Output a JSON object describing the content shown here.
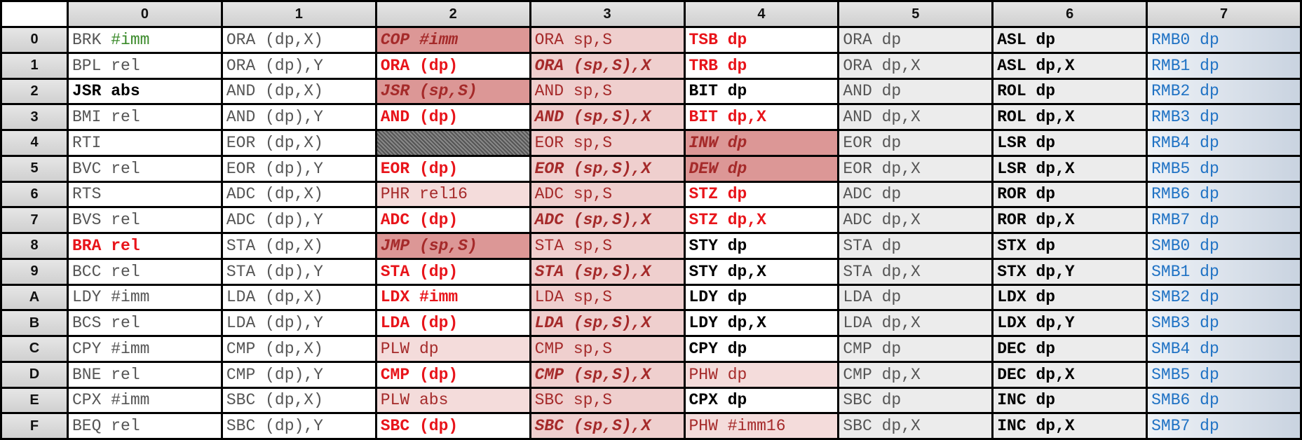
{
  "header": {
    "columns": [
      "0",
      "1",
      "2",
      "3",
      "4",
      "5",
      "6",
      "7"
    ]
  },
  "rows": [
    {
      "label": "0",
      "cells": [
        "BRK #imm",
        "ORA (dp,X)",
        "COP #imm",
        "ORA sp,S",
        "TSB dp",
        "ORA dp",
        "ASL dp",
        "RMB0 dp"
      ]
    },
    {
      "label": "1",
      "cells": [
        "BPL rel",
        "ORA (dp),Y",
        "ORA (dp)",
        "ORA (sp,S),X",
        "TRB dp",
        "ORA dp,X",
        "ASL dp,X",
        "RMB1 dp"
      ]
    },
    {
      "label": "2",
      "cells": [
        "JSR abs",
        "AND (dp,X)",
        "JSR (sp,S)",
        "AND sp,S",
        "BIT dp",
        "AND dp",
        "ROL dp",
        "RMB2 dp"
      ]
    },
    {
      "label": "3",
      "cells": [
        "BMI rel",
        "AND (dp),Y",
        "AND (dp)",
        "AND (sp,S),X",
        "BIT dp,X",
        "AND dp,X",
        "ROL dp,X",
        "RMB3 dp"
      ]
    },
    {
      "label": "4",
      "cells": [
        "RTI",
        "EOR (dp,X)",
        null,
        "EOR sp,S",
        "INW dp",
        "EOR dp",
        "LSR dp",
        "RMB4 dp"
      ]
    },
    {
      "label": "5",
      "cells": [
        "BVC rel",
        "EOR (dp),Y",
        "EOR (dp)",
        "EOR (sp,S),X",
        "DEW dp",
        "EOR dp,X",
        "LSR dp,X",
        "RMB5 dp"
      ]
    },
    {
      "label": "6",
      "cells": [
        "RTS",
        "ADC (dp,X)",
        "PHR rel16",
        "ADC sp,S",
        "STZ dp",
        "ADC dp",
        "ROR dp",
        "RMB6 dp"
      ]
    },
    {
      "label": "7",
      "cells": [
        "BVS rel",
        "ADC (dp),Y",
        "ADC (dp)",
        "ADC (sp,S),X",
        "STZ dp,X",
        "ADC dp,X",
        "ROR dp,X",
        "RMB7 dp"
      ]
    },
    {
      "label": "8",
      "cells": [
        "BRA rel",
        "STA (dp,X)",
        "JMP (sp,S)",
        "STA sp,S",
        "STY dp",
        "STA dp",
        "STX dp",
        "SMB0 dp"
      ]
    },
    {
      "label": "9",
      "cells": [
        "BCC rel",
        "STA (dp),Y",
        "STA (dp)",
        "STA (sp,S),X",
        "STY dp,X",
        "STA dp,X",
        "STX dp,Y",
        "SMB1 dp"
      ]
    },
    {
      "label": "A",
      "cells": [
        "LDY #imm",
        "LDA (dp,X)",
        "LDX #imm",
        "LDA sp,S",
        "LDY dp",
        "LDA dp",
        "LDX dp",
        "SMB2 dp"
      ]
    },
    {
      "label": "B",
      "cells": [
        "BCS rel",
        "LDA (dp),Y",
        "LDA (dp)",
        "LDA (sp,S),X",
        "LDY dp,X",
        "LDA dp,X",
        "LDX dp,Y",
        "SMB3 dp"
      ]
    },
    {
      "label": "C",
      "cells": [
        "CPY #imm",
        "CMP (dp,X)",
        "PLW dp",
        "CMP sp,S",
        "CPY dp",
        "CMP dp",
        "DEC dp",
        "SMB4 dp"
      ]
    },
    {
      "label": "D",
      "cells": [
        "BNE rel",
        "CMP (dp),Y",
        "CMP (dp)",
        "CMP (sp,S),X",
        "PHW dp",
        "CMP dp,X",
        "DEC dp,X",
        "SMB5 dp"
      ]
    },
    {
      "label": "E",
      "cells": [
        "CPX #imm",
        "SBC (dp,X)",
        "PLW abs",
        "SBC sp,S",
        "CPX dp",
        "SBC dp",
        "INC dp",
        "SMB6 dp"
      ]
    },
    {
      "label": "F",
      "cells": [
        "BEQ rel",
        "SBC (dp),Y",
        "SBC (dp)",
        "SBC (sp,S),X",
        "PHW #imm16",
        "SBC dp,X",
        "INC dp,X",
        "SMB7 dp"
      ]
    }
  ]
}
